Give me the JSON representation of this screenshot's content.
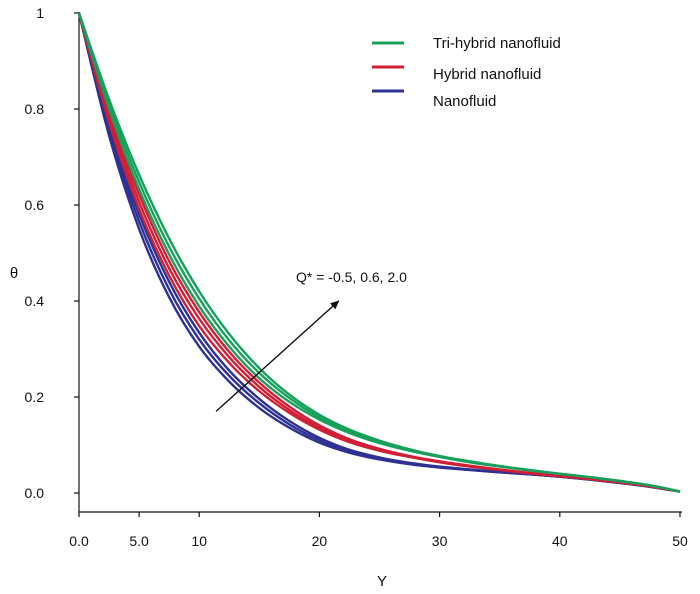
{
  "chart_data": {
    "type": "line",
    "title": "",
    "xlabel": "Y",
    "ylabel": "θ",
    "x_ticks": [
      {
        "label": "0.0",
        "value": 0
      },
      {
        "label": "5.0",
        "value": 5
      },
      {
        "label": "10",
        "value": 10
      },
      {
        "label": "20",
        "value": 20
      },
      {
        "label": "30",
        "value": 30
      },
      {
        "label": "40",
        "value": 40
      },
      {
        "label": "50",
        "value": 50
      }
    ],
    "y_ticks": [
      {
        "label": "0.0",
        "value": 0.0
      },
      {
        "label": "0.2",
        "value": 0.2
      },
      {
        "label": "0.4",
        "value": 0.4
      },
      {
        "label": "0.6",
        "value": 0.6
      },
      {
        "label": "0.8",
        "value": 0.8
      },
      {
        "label": "1",
        "value": 1.0
      }
    ],
    "xlim": [
      0,
      50
    ],
    "ylim": [
      0,
      1
    ],
    "legend": {
      "placement": "top-right",
      "entries": [
        {
          "name": "Tri-hybrid nanofluid",
          "color": "#17a05a"
        },
        {
          "name": "Hybrid nanofluid",
          "color": "#d01f35"
        },
        {
          "name": "Nanofluid",
          "color": "#2e3192"
        }
      ]
    },
    "annotation": {
      "text": "Q* = -0.5, 0.6, 2.0",
      "arrow_from": [
        11.4,
        0.17
      ],
      "arrow_to": [
        21.6,
        0.4
      ]
    },
    "x": [
      0,
      2.5,
      5,
      7.5,
      10,
      12.5,
      15,
      17.5,
      20,
      22.5,
      25,
      27.5,
      30,
      32.5,
      35,
      37.5,
      40,
      42.5,
      45,
      47.5,
      50
    ],
    "series": [
      {
        "name": "Tri-hybrid nanofluid",
        "Q": "-0.5",
        "color": "#17a05a",
        "values": [
          1.0,
          0.8,
          0.633,
          0.497,
          0.389,
          0.305,
          0.239,
          0.19,
          0.153,
          0.125,
          0.104,
          0.088,
          0.075,
          0.064,
          0.055,
          0.047,
          0.04,
          0.033,
          0.025,
          0.016,
          0.003
        ]
      },
      {
        "name": "Tri-hybrid nanofluid",
        "Q": "0.6",
        "color": "#17a05a",
        "values": [
          1.0,
          0.81,
          0.648,
          0.513,
          0.405,
          0.318,
          0.25,
          0.198,
          0.158,
          0.129,
          0.107,
          0.09,
          0.076,
          0.065,
          0.056,
          0.047,
          0.04,
          0.033,
          0.025,
          0.016,
          0.003
        ]
      },
      {
        "name": "Tri-hybrid nanofluid",
        "Q": "2.0",
        "color": "#17a05a",
        "values": [
          1.0,
          0.82,
          0.663,
          0.53,
          0.42,
          0.331,
          0.26,
          0.205,
          0.163,
          0.132,
          0.109,
          0.091,
          0.077,
          0.066,
          0.056,
          0.048,
          0.04,
          0.033,
          0.025,
          0.016,
          0.003
        ]
      },
      {
        "name": "Hybrid nanofluid",
        "Q": "-0.5",
        "color": "#d01f35",
        "values": [
          1.0,
          0.773,
          0.592,
          0.453,
          0.348,
          0.271,
          0.212,
          0.167,
          0.132,
          0.106,
          0.088,
          0.075,
          0.064,
          0.055,
          0.048,
          0.041,
          0.035,
          0.029,
          0.022,
          0.014,
          0.003
        ]
      },
      {
        "name": "Hybrid nanofluid",
        "Q": "0.6",
        "color": "#d01f35",
        "values": [
          1.0,
          0.783,
          0.607,
          0.468,
          0.363,
          0.283,
          0.221,
          0.173,
          0.136,
          0.109,
          0.09,
          0.076,
          0.065,
          0.056,
          0.048,
          0.041,
          0.035,
          0.029,
          0.022,
          0.014,
          0.003
        ]
      },
      {
        "name": "Hybrid nanofluid",
        "Q": "2.0",
        "color": "#d01f35",
        "values": [
          1.0,
          0.792,
          0.622,
          0.483,
          0.377,
          0.294,
          0.23,
          0.18,
          0.141,
          0.112,
          0.092,
          0.077,
          0.066,
          0.057,
          0.049,
          0.042,
          0.036,
          0.029,
          0.022,
          0.014,
          0.003
        ]
      },
      {
        "name": "Nanofluid",
        "Q": "-0.5",
        "color": "#2e3192",
        "values": [
          1.0,
          0.745,
          0.55,
          0.408,
          0.305,
          0.232,
          0.177,
          0.136,
          0.105,
          0.084,
          0.07,
          0.06,
          0.053,
          0.048,
          0.043,
          0.039,
          0.034,
          0.028,
          0.021,
          0.013,
          0.003
        ]
      },
      {
        "name": "Nanofluid",
        "Q": "0.6",
        "color": "#2e3192",
        "values": [
          1.0,
          0.755,
          0.566,
          0.424,
          0.32,
          0.244,
          0.187,
          0.143,
          0.11,
          0.087,
          0.072,
          0.061,
          0.054,
          0.048,
          0.043,
          0.039,
          0.034,
          0.028,
          0.021,
          0.013,
          0.003
        ]
      },
      {
        "name": "Nanofluid",
        "Q": "2.0",
        "color": "#2e3192",
        "values": [
          1.0,
          0.764,
          0.581,
          0.44,
          0.334,
          0.255,
          0.196,
          0.15,
          0.115,
          0.09,
          0.074,
          0.063,
          0.055,
          0.049,
          0.044,
          0.039,
          0.034,
          0.028,
          0.021,
          0.013,
          0.003
        ]
      }
    ]
  }
}
